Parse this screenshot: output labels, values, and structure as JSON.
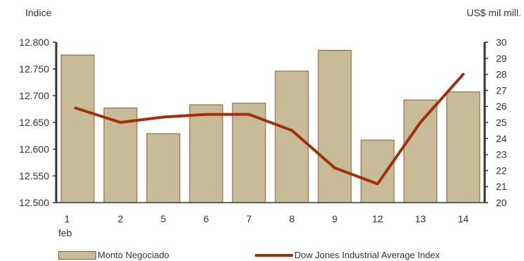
{
  "chart_data": {
    "type": "bar+line",
    "categories": [
      "1",
      "2",
      "5",
      "6",
      "7",
      "8",
      "9",
      "12",
      "13",
      "14"
    ],
    "category_sublabel": "feb",
    "left_axis": {
      "title": "Indice",
      "ticks": [
        "12.500",
        "12.550",
        "12.600",
        "12.650",
        "12.700",
        "12.750",
        "12.800"
      ],
      "range": [
        12500,
        12800
      ]
    },
    "right_axis": {
      "title": "US$ mil mill.",
      "ticks": [
        "20",
        "21",
        "22",
        "23",
        "24",
        "25",
        "26",
        "27",
        "28",
        "29",
        "30"
      ],
      "range": [
        20,
        30
      ]
    },
    "series": [
      {
        "name": "Monto Negociado",
        "kind": "bar",
        "axis": "right",
        "color": "#c8bc98",
        "values": [
          29.2,
          25.9,
          24.3,
          26.1,
          26.2,
          28.2,
          29.5,
          23.9,
          26.4,
          26.9
        ]
      },
      {
        "name": "Dow Jones Industrial Average Index",
        "kind": "line",
        "axis": "left",
        "color": "#a0300a",
        "values": [
          12677,
          12650,
          12660,
          12665,
          12665,
          12635,
          12565,
          12535,
          12650,
          12740
        ]
      }
    ],
    "grid": false
  }
}
